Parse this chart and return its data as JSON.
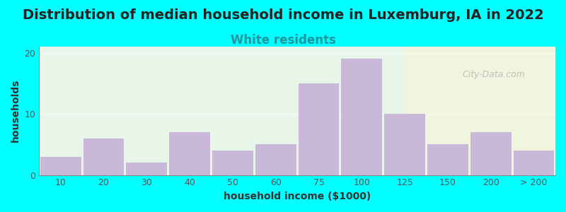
{
  "title": "Distribution of median household income in Luxemburg, IA in 2022",
  "subtitle": "White residents",
  "xlabel": "household income ($1000)",
  "ylabel": "households",
  "background_color": "#00FFFF",
  "plot_bg_left": "#e8f5e9",
  "plot_bg_right": "#f5f5e8",
  "bar_color": "#c9b8d8",
  "bar_edge_color": "#b0a0c8",
  "categories": [
    "10",
    "20",
    "30",
    "40",
    "50",
    "60",
    "75",
    "100",
    "125",
    "150",
    "200",
    "> 200"
  ],
  "values": [
    3,
    6,
    2,
    7,
    4,
    5,
    15,
    19,
    10,
    5,
    7,
    4
  ],
  "yticks": [
    0,
    10,
    20
  ],
  "ylim": [
    0,
    21
  ],
  "title_fontsize": 14,
  "subtitle_fontsize": 12,
  "subtitle_color": "#2196a0",
  "watermark": "City-Data.com"
}
